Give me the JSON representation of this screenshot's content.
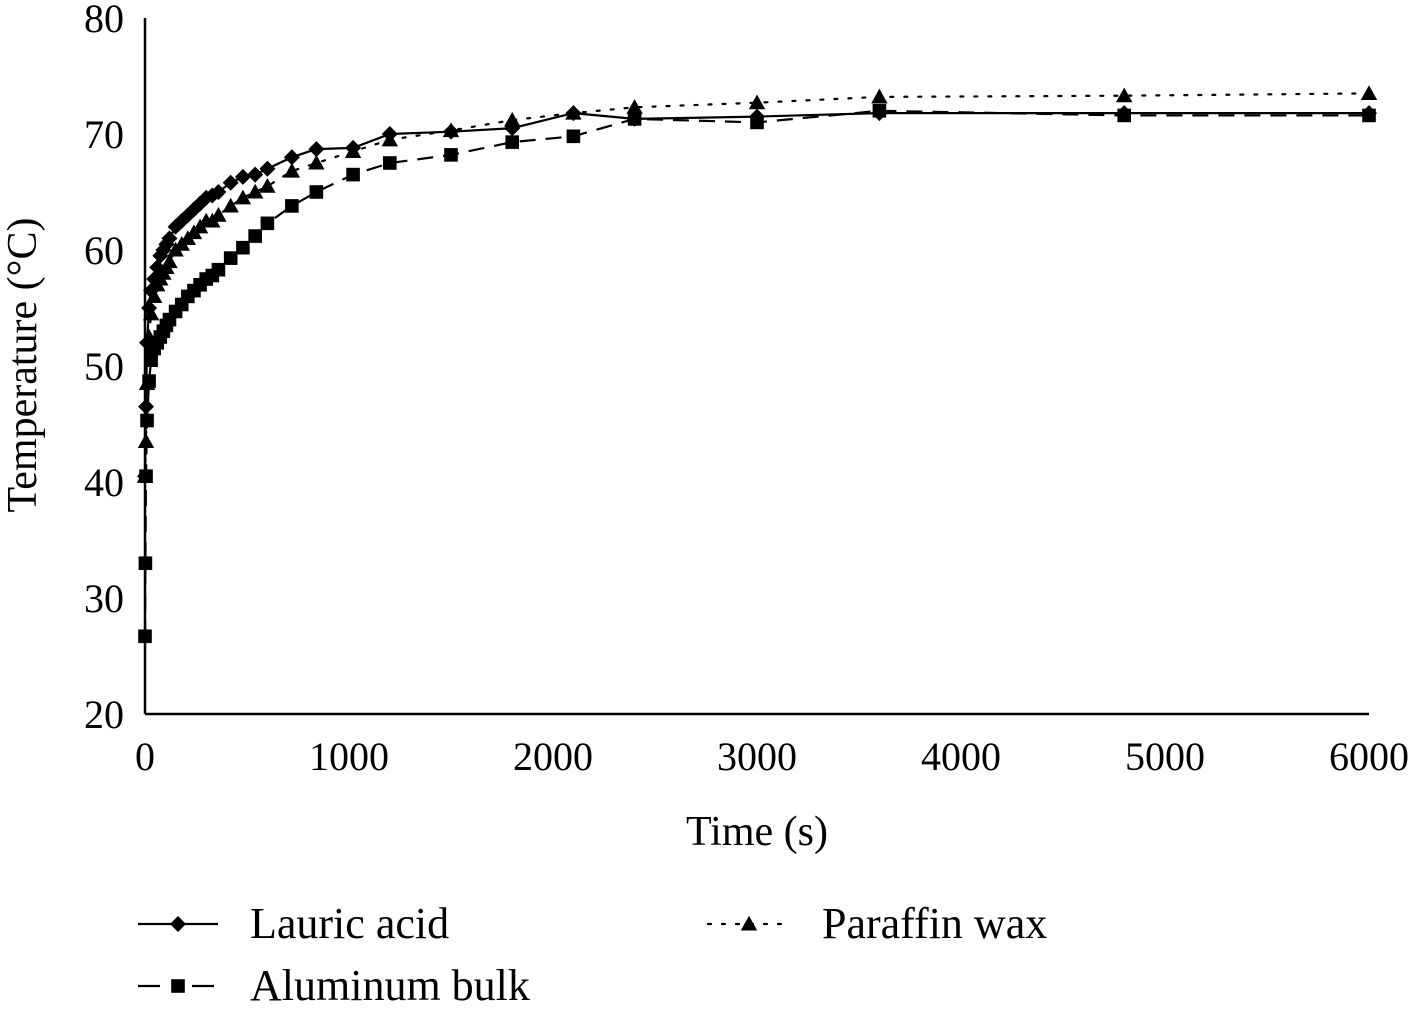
{
  "chart_data": {
    "type": "line",
    "xlabel": "Time (s)",
    "ylabel": "Temperature (°C)",
    "xlim": [
      0,
      6000
    ],
    "ylim": [
      20,
      80
    ],
    "xticks": [
      0,
      1000,
      2000,
      3000,
      4000,
      5000,
      6000
    ],
    "yticks": [
      20,
      30,
      40,
      50,
      60,
      70,
      80
    ],
    "grid": false,
    "legend_position": "bottom",
    "series": [
      {
        "name": "Lauric acid",
        "line": "solid",
        "marker": "diamond",
        "color": "#000000",
        "x": [
          0,
          5,
          10,
          20,
          30,
          45,
          60,
          75,
          90,
          105,
          120,
          150,
          180,
          210,
          240,
          270,
          300,
          330,
          360,
          420,
          480,
          540,
          600,
          720,
          840,
          1020,
          1200,
          1500,
          1800,
          2100,
          2400,
          3000,
          3600,
          4800,
          6000
        ],
        "y": [
          40.5,
          46.5,
          52,
          55,
          56.5,
          57.5,
          58.5,
          59.5,
          60,
          60.5,
          61,
          62,
          62.5,
          63,
          63.5,
          64,
          64.5,
          64.7,
          65,
          65.8,
          66.3,
          66.5,
          67,
          68,
          68.7,
          68.8,
          70,
          70.2,
          70.5,
          71.8,
          71.3,
          71.5,
          71.8,
          71.8,
          71.8
        ]
      },
      {
        "name": "Paraffin wax",
        "line": "dotted",
        "marker": "triangle",
        "color": "#000000",
        "x": [
          0,
          5,
          10,
          20,
          30,
          45,
          60,
          75,
          90,
          105,
          120,
          150,
          180,
          210,
          240,
          270,
          300,
          330,
          360,
          420,
          480,
          540,
          600,
          720,
          840,
          1020,
          1200,
          1500,
          1800,
          2100,
          2400,
          3000,
          3600,
          4800,
          6000
        ],
        "y": [
          40.5,
          43.5,
          48.5,
          52.5,
          54.5,
          56,
          57,
          57.5,
          58,
          58.5,
          59,
          60,
          60.5,
          61,
          61.5,
          62,
          62.5,
          62.5,
          63,
          63.8,
          64.5,
          65,
          65.5,
          66.8,
          67.5,
          68.5,
          69.5,
          70.3,
          71.2,
          71.8,
          72.3,
          72.7,
          73.2,
          73.3,
          73.5
        ]
      },
      {
        "name": "Aluminum bulk",
        "line": "dashed",
        "marker": "square",
        "color": "#000000",
        "x": [
          0,
          2,
          5,
          10,
          20,
          30,
          45,
          60,
          75,
          90,
          105,
          120,
          150,
          180,
          210,
          240,
          270,
          300,
          330,
          360,
          420,
          480,
          540,
          600,
          720,
          840,
          1020,
          1200,
          1500,
          1800,
          2100,
          2400,
          3000,
          3600,
          4800,
          6000
        ],
        "y": [
          26.7,
          33,
          40.5,
          45.3,
          48.7,
          50.5,
          51.5,
          52,
          52.5,
          53,
          53.5,
          54,
          54.7,
          55.3,
          56,
          56.5,
          57,
          57.5,
          57.8,
          58.3,
          59.3,
          60.2,
          61.2,
          62.3,
          63.8,
          65,
          66.5,
          67.5,
          68.2,
          69.3,
          69.8,
          71.3,
          71,
          72,
          71.6,
          71.6
        ]
      }
    ]
  }
}
